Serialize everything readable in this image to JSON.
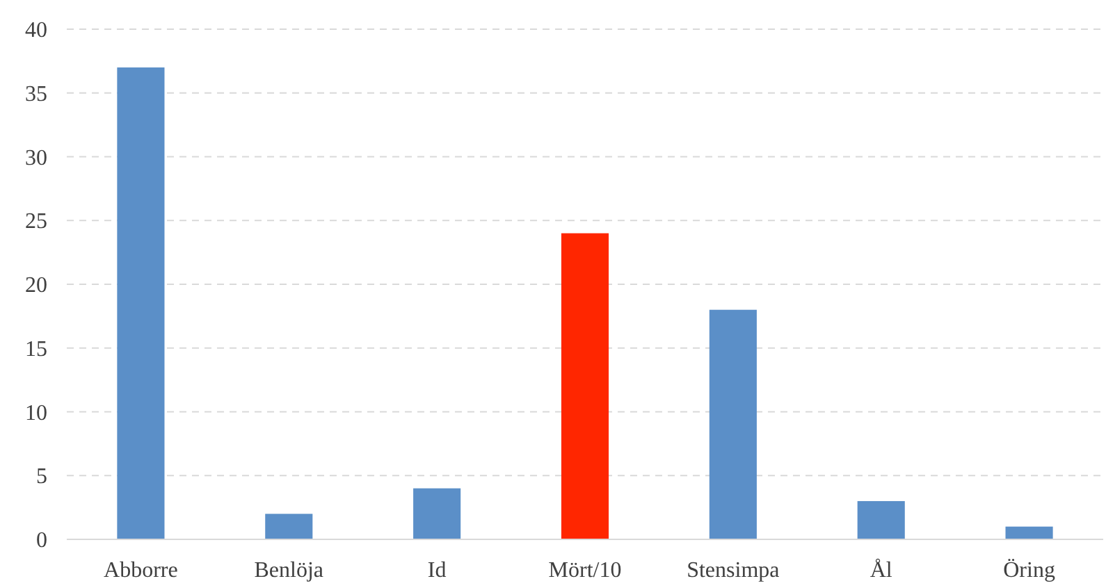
{
  "chart_data": {
    "type": "bar",
    "categories": [
      "Abborre",
      "Benlöja",
      "Id",
      "Mört/10",
      "Stensimpa",
      "Ål",
      "Öring"
    ],
    "values": [
      37,
      2,
      4,
      24,
      18,
      3,
      1
    ],
    "colors": [
      "#5b8fc8",
      "#5b8fc8",
      "#5b8fc8",
      "#ff2600",
      "#5b8fc8",
      "#5b8fc8",
      "#5b8fc8"
    ],
    "ylim": [
      0,
      40
    ],
    "yticks": [
      0,
      5,
      10,
      15,
      20,
      25,
      30,
      35,
      40
    ],
    "grid": "y"
  }
}
